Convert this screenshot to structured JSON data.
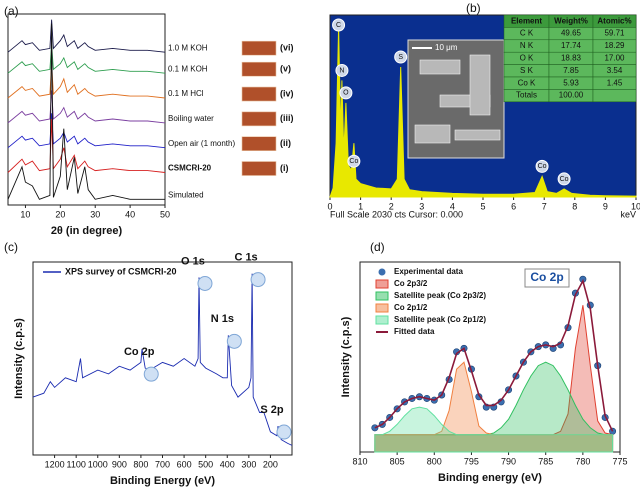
{
  "chart_data": [
    {
      "type": "line",
      "label": "(a)",
      "xlabel": "2θ (in degree)",
      "xlim": [
        5,
        50
      ],
      "xticks": [
        10,
        20,
        30,
        40,
        50
      ],
      "ylim": [
        0,
        100
      ],
      "x": [
        5,
        9,
        10,
        12,
        14,
        17,
        17.5,
        18,
        20,
        21,
        22,
        24,
        25,
        27,
        28,
        30,
        35,
        40,
        45,
        50
      ],
      "series": [
        {
          "name": "1.0 M KOH",
          "tag": "(vi)",
          "color": "#1a1a4a",
          "values": [
            80,
            86,
            84,
            85,
            81,
            82,
            97,
            82,
            86,
            89,
            83,
            86,
            82,
            85,
            83,
            81,
            82,
            81,
            81,
            80
          ]
        },
        {
          "name": "0.1 M KOH",
          "tag": "(v)",
          "color": "#2e9e4f",
          "values": [
            69,
            75,
            73,
            74,
            70,
            71,
            84,
            71,
            74,
            77,
            72,
            75,
            71,
            74,
            72,
            70,
            71,
            70,
            70,
            69
          ]
        },
        {
          "name": "0.1 M HCl",
          "tag": "(iv)",
          "color": "#e07020",
          "values": [
            56,
            62,
            60,
            61,
            57,
            58,
            74,
            58,
            62,
            66,
            59,
            63,
            58,
            61,
            59,
            57,
            58,
            57,
            57,
            56
          ]
        },
        {
          "name": "Boiling water",
          "tag": "(iii)",
          "color": "#7b3fa0",
          "values": [
            43,
            49,
            47,
            48,
            44,
            45,
            60,
            45,
            48,
            51,
            46,
            49,
            45,
            48,
            46,
            44,
            45,
            44,
            44,
            43
          ]
        },
        {
          "name": "Open air (1 month)",
          "tag": "(ii)",
          "color": "#1f1fc8",
          "values": [
            30,
            36,
            34,
            35,
            31,
            32,
            48,
            32,
            35,
            38,
            33,
            36,
            32,
            35,
            33,
            31,
            32,
            31,
            31,
            30
          ]
        },
        {
          "name": "CSMCRI-20",
          "tag": "(i)",
          "color": "#d62020",
          "values": [
            17,
            24,
            21,
            23,
            18,
            19,
            45,
            19,
            24,
            30,
            20,
            26,
            19,
            23,
            20,
            18,
            19,
            18,
            18,
            17
          ]
        },
        {
          "name": "Simulated",
          "color": "#111111",
          "values": [
            3,
            20,
            12,
            10,
            3,
            5,
            95,
            4,
            15,
            40,
            8,
            25,
            6,
            20,
            8,
            3,
            5,
            3,
            3,
            3
          ]
        }
      ]
    },
    {
      "type": "area",
      "label": "(b)",
      "xunit": "keV",
      "footer": "Full Scale 2030 cts Cursor: 0.000",
      "scalebar": "10 μm",
      "xlim": [
        0,
        10
      ],
      "xticks": [
        0,
        1,
        2,
        3,
        4,
        5,
        6,
        7,
        8,
        9,
        10
      ],
      "ylim": [
        0,
        2030
      ],
      "color": "#e8e800",
      "x": [
        0,
        0.1,
        0.2,
        0.28,
        0.35,
        0.39,
        0.45,
        0.52,
        0.6,
        0.7,
        0.78,
        0.85,
        1,
        1.5,
        2,
        2.2,
        2.31,
        2.42,
        2.6,
        3,
        4,
        5,
        6,
        6.7,
        6.93,
        7.1,
        7.4,
        7.65,
        7.9,
        8.5,
        9,
        10
      ],
      "series": [
        {
          "values": [
            0,
            100,
            600,
            1900,
            700,
            1300,
            500,
            1050,
            350,
            300,
            600,
            200,
            150,
            100,
            90,
            200,
            1450,
            200,
            80,
            60,
            40,
            30,
            30,
            50,
            230,
            60,
            40,
            90,
            40,
            20,
            15,
            10
          ]
        }
      ],
      "annotations": [
        {
          "text": "C",
          "x": 0.28
        },
        {
          "text": "N",
          "x": 0.39
        },
        {
          "text": "O",
          "x": 0.52
        },
        {
          "text": "Co",
          "x": 0.78
        },
        {
          "text": "S",
          "x": 2.31
        },
        {
          "text": "Co",
          "x": 6.93
        },
        {
          "text": "Co",
          "x": 7.65
        }
      ],
      "table": {
        "header": [
          "Element",
          "Weight%",
          "Atomic%"
        ],
        "rows": [
          [
            "C K",
            "49.65",
            "59.71"
          ],
          [
            "N K",
            "17.74",
            "18.29"
          ],
          [
            "O K",
            "18.83",
            "17.00"
          ],
          [
            "S K",
            "7.85",
            "3.54"
          ],
          [
            "Co K",
            "5.93",
            "1.45"
          ],
          [
            "Totals",
            "100.00",
            ""
          ]
        ]
      }
    },
    {
      "type": "line",
      "label": "(c)",
      "xlabel": "Binding Energy (eV)",
      "ylabel": "Intensity (c.p.s)",
      "xlim": [
        1300,
        100
      ],
      "xticks": [
        1200,
        1100,
        1000,
        900,
        800,
        700,
        600,
        500,
        400,
        300,
        200
      ],
      "ylim": [
        0,
        100
      ],
      "x": [
        1300,
        1250,
        1220,
        1200,
        1150,
        1100,
        1080,
        1070,
        1000,
        950,
        900,
        850,
        800,
        795,
        780,
        760,
        700,
        650,
        600,
        550,
        535,
        531,
        525,
        500,
        450,
        420,
        400,
        395,
        380,
        350,
        300,
        290,
        285,
        280,
        250,
        230,
        200,
        170,
        165,
        150,
        120,
        100
      ],
      "series": [
        {
          "name": "XPS survey of CSMCRI-20",
          "color": "#1a2bb0",
          "values": [
            30,
            32,
            38,
            35,
            40,
            38,
            50,
            40,
            44,
            42,
            46,
            44,
            48,
            55,
            45,
            44,
            48,
            46,
            50,
            46,
            50,
            92,
            48,
            45,
            42,
            40,
            40,
            62,
            36,
            30,
            35,
            40,
            94,
            30,
            22,
            22,
            12,
            10,
            15,
            8,
            6,
            5
          ]
        }
      ],
      "annotations": [
        {
          "text": "Co 2p",
          "x": 780
        },
        {
          "text": "O 1s",
          "x": 531
        },
        {
          "text": "N 1s",
          "x": 395
        },
        {
          "text": "C 1s",
          "x": 285
        },
        {
          "text": "S 2p",
          "x": 165
        }
      ]
    },
    {
      "type": "line",
      "label": "(d)",
      "xlabel": "Binding energy (eV)",
      "ylabel": "Intensity (c.p.s)",
      "tag": "Co 2p",
      "xlim": [
        810,
        775
      ],
      "xticks": [
        810,
        805,
        800,
        795,
        790,
        785,
        780,
        775
      ],
      "ylim": [
        0,
        110
      ],
      "x": [
        808,
        807,
        806,
        805,
        804,
        803,
        802,
        801,
        800,
        799,
        798,
        797,
        796,
        795,
        794,
        793,
        792,
        791,
        790,
        789,
        788,
        787,
        786,
        785,
        784,
        783,
        782,
        781,
        780,
        779,
        778,
        777,
        776
      ],
      "series": [
        {
          "name": "Experimental data",
          "style": "points",
          "color": "#3b6fb0",
          "values": [
            14,
            16,
            20,
            25,
            29,
            31,
            32,
            31,
            30,
            33,
            42,
            58,
            60,
            48,
            32,
            26,
            26,
            29,
            36,
            44,
            52,
            58,
            61,
            62,
            60,
            62,
            72,
            92,
            100,
            85,
            50,
            20,
            12
          ]
        },
        {
          "name": "Co 2p3/2",
          "style": "area",
          "color": "#e04030",
          "values": [
            10,
            10,
            10,
            10,
            10,
            10,
            10,
            10,
            10,
            10,
            10,
            10,
            10,
            10,
            10,
            10,
            10,
            10,
            10,
            10,
            10,
            10,
            10,
            10,
            10,
            12,
            22,
            60,
            85,
            50,
            18,
            11,
            10
          ]
        },
        {
          "name": "Satellite peak (Co 2p3/2)",
          "style": "area",
          "color": "#30c060",
          "values": [
            10,
            10,
            10,
            10,
            10,
            10,
            10,
            10,
            10,
            10,
            10,
            10,
            10,
            10,
            10,
            10,
            11,
            14,
            19,
            27,
            36,
            44,
            50,
            52,
            50,
            44,
            36,
            27,
            19,
            14,
            11,
            10,
            10
          ]
        },
        {
          "name": "Co 2p1/2",
          "style": "area",
          "color": "#f08040",
          "values": [
            10,
            10,
            10,
            10,
            10,
            10,
            10,
            10,
            10,
            12,
            24,
            48,
            52,
            35,
            15,
            11,
            10,
            10,
            10,
            10,
            10,
            10,
            10,
            10,
            10,
            10,
            10,
            10,
            10,
            10,
            10,
            10,
            10
          ]
        },
        {
          "name": "Satellite peak (Co 2p1/2)",
          "style": "area",
          "color": "#60e0a0",
          "values": [
            10,
            10,
            12,
            16,
            21,
            25,
            26,
            25,
            21,
            16,
            12,
            10,
            10,
            10,
            10,
            10,
            10,
            10,
            10,
            10,
            10,
            10,
            10,
            10,
            10,
            10,
            10,
            10,
            10,
            10,
            10,
            10,
            10
          ]
        },
        {
          "name": "Fitted data",
          "style": "line",
          "color": "#8b1a3a",
          "values": [
            14,
            16,
            20,
            25,
            29,
            31,
            32,
            31,
            30,
            33,
            43,
            57,
            60,
            47,
            33,
            27,
            27,
            30,
            36,
            44,
            52,
            58,
            61,
            62,
            61,
            63,
            73,
            91,
            99,
            83,
            50,
            21,
            12
          ]
        }
      ]
    }
  ]
}
